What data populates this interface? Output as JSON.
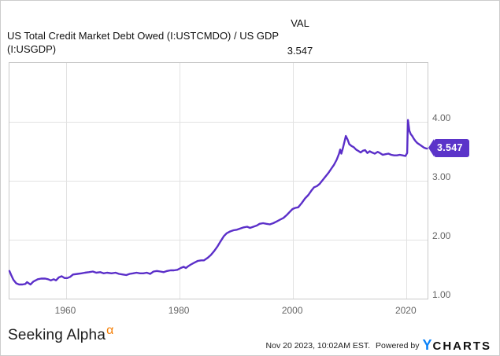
{
  "header": {
    "title_line1": "US Total Credit Market Debt Owed (I:USTCMDO) / US GDP",
    "title_line2": "(I:USGDP)",
    "val_label": "VAL",
    "val_value": "3.547"
  },
  "badge": {
    "value": "3.547",
    "numeric": 3.547
  },
  "footer": {
    "brand": "Seeking Alpha",
    "brand_alpha": "α",
    "timestamp": "Nov 20 2023, 10:02AM EST.",
    "powered_by": "Powered by",
    "ycharts_y": "Y",
    "ycharts_rest": "CHARTS"
  },
  "colors": {
    "line": "#5b2fc9",
    "badge_bg": "#5b34c9",
    "alpha_orange": "#f57c00",
    "ycharts_blue": "#0b82f8",
    "grid": "#e2e2e2",
    "axis_text": "#666666"
  },
  "chart_data": {
    "type": "line",
    "title": "US Total Credit Market Debt Owed (I:USTCMDO) / US GDP (I:USGDP)",
    "xlabel": "",
    "ylabel": "",
    "xlim": [
      1950.0,
      2023.7
    ],
    "ylim": [
      1.0,
      5.0
    ],
    "grid": true,
    "legend_position": "none",
    "x_ticks": [
      {
        "year": 1960,
        "label": "1960"
      },
      {
        "year": 1980,
        "label": "1980"
      },
      {
        "year": 2000,
        "label": "2000"
      },
      {
        "year": 2020,
        "label": "2020"
      }
    ],
    "y_ticks": [
      {
        "value": 4.0,
        "label": "4.00"
      },
      {
        "value": 3.0,
        "label": "3.00"
      },
      {
        "value": 2.0,
        "label": "2.00"
      },
      {
        "value": 1.0,
        "label": "1.00"
      }
    ],
    "last_value": 3.547,
    "series": [
      {
        "name": "US Total Credit Market Debt Owed / US GDP",
        "points": [
          [
            1950.0,
            1.47
          ],
          [
            1950.3,
            1.4
          ],
          [
            1950.7,
            1.32
          ],
          [
            1951.2,
            1.26
          ],
          [
            1951.7,
            1.24
          ],
          [
            1952.3,
            1.24
          ],
          [
            1952.8,
            1.25
          ],
          [
            1953.1,
            1.28
          ],
          [
            1953.7,
            1.24
          ],
          [
            1954.2,
            1.29
          ],
          [
            1955.0,
            1.33
          ],
          [
            1955.6,
            1.34
          ],
          [
            1956.3,
            1.34
          ],
          [
            1956.8,
            1.33
          ],
          [
            1957.3,
            1.31
          ],
          [
            1957.8,
            1.33
          ],
          [
            1958.2,
            1.31
          ],
          [
            1958.7,
            1.36
          ],
          [
            1959.2,
            1.38
          ],
          [
            1959.7,
            1.35
          ],
          [
            1960.2,
            1.35
          ],
          [
            1960.7,
            1.37
          ],
          [
            1961.2,
            1.41
          ],
          [
            1962.0,
            1.42
          ],
          [
            1962.7,
            1.43
          ],
          [
            1963.3,
            1.44
          ],
          [
            1964.0,
            1.45
          ],
          [
            1964.7,
            1.46
          ],
          [
            1965.3,
            1.44
          ],
          [
            1966.0,
            1.45
          ],
          [
            1966.6,
            1.43
          ],
          [
            1967.2,
            1.44
          ],
          [
            1968.0,
            1.43
          ],
          [
            1968.7,
            1.44
          ],
          [
            1969.3,
            1.42
          ],
          [
            1970.0,
            1.41
          ],
          [
            1970.6,
            1.4
          ],
          [
            1971.2,
            1.42
          ],
          [
            1971.8,
            1.43
          ],
          [
            1972.4,
            1.44
          ],
          [
            1973.0,
            1.43
          ],
          [
            1973.6,
            1.43
          ],
          [
            1974.2,
            1.44
          ],
          [
            1974.8,
            1.42
          ],
          [
            1975.4,
            1.46
          ],
          [
            1976.0,
            1.47
          ],
          [
            1976.6,
            1.46
          ],
          [
            1977.2,
            1.45
          ],
          [
            1977.8,
            1.47
          ],
          [
            1978.4,
            1.48
          ],
          [
            1979.0,
            1.48
          ],
          [
            1979.6,
            1.49
          ],
          [
            1980.2,
            1.52
          ],
          [
            1980.7,
            1.54
          ],
          [
            1981.1,
            1.52
          ],
          [
            1981.5,
            1.55
          ],
          [
            1982.0,
            1.58
          ],
          [
            1982.6,
            1.61
          ],
          [
            1983.2,
            1.64
          ],
          [
            1983.8,
            1.65
          ],
          [
            1984.3,
            1.65
          ],
          [
            1984.9,
            1.69
          ],
          [
            1985.5,
            1.74
          ],
          [
            1986.1,
            1.81
          ],
          [
            1986.7,
            1.89
          ],
          [
            1987.2,
            1.97
          ],
          [
            1987.8,
            2.06
          ],
          [
            1988.3,
            2.11
          ],
          [
            1988.9,
            2.14
          ],
          [
            1989.5,
            2.16
          ],
          [
            1990.1,
            2.17
          ],
          [
            1990.7,
            2.19
          ],
          [
            1991.3,
            2.21
          ],
          [
            1991.9,
            2.22
          ],
          [
            1992.4,
            2.2
          ],
          [
            1993.0,
            2.22
          ],
          [
            1993.6,
            2.24
          ],
          [
            1994.1,
            2.27
          ],
          [
            1994.7,
            2.28
          ],
          [
            1995.3,
            2.27
          ],
          [
            1995.9,
            2.26
          ],
          [
            1996.5,
            2.28
          ],
          [
            1997.1,
            2.31
          ],
          [
            1997.7,
            2.34
          ],
          [
            1998.3,
            2.37
          ],
          [
            1998.9,
            2.42
          ],
          [
            1999.4,
            2.47
          ],
          [
            1999.9,
            2.52
          ],
          [
            2000.4,
            2.54
          ],
          [
            2000.9,
            2.55
          ],
          [
            2001.5,
            2.62
          ],
          [
            2002.1,
            2.7
          ],
          [
            2002.7,
            2.76
          ],
          [
            2003.2,
            2.83
          ],
          [
            2003.7,
            2.89
          ],
          [
            2004.2,
            2.91
          ],
          [
            2004.7,
            2.95
          ],
          [
            2005.2,
            3.01
          ],
          [
            2005.7,
            3.07
          ],
          [
            2006.2,
            3.13
          ],
          [
            2006.7,
            3.2
          ],
          [
            2007.2,
            3.27
          ],
          [
            2007.7,
            3.36
          ],
          [
            2008.1,
            3.46
          ],
          [
            2008.3,
            3.53
          ],
          [
            2008.5,
            3.46
          ],
          [
            2008.8,
            3.56
          ],
          [
            2009.1,
            3.68
          ],
          [
            2009.3,
            3.76
          ],
          [
            2009.6,
            3.7
          ],
          [
            2009.9,
            3.62
          ],
          [
            2010.3,
            3.59
          ],
          [
            2010.7,
            3.57
          ],
          [
            2011.1,
            3.53
          ],
          [
            2011.6,
            3.5
          ],
          [
            2011.9,
            3.48
          ],
          [
            2012.3,
            3.51
          ],
          [
            2012.7,
            3.52
          ],
          [
            2013.1,
            3.47
          ],
          [
            2013.5,
            3.5
          ],
          [
            2013.9,
            3.48
          ],
          [
            2014.4,
            3.46
          ],
          [
            2014.9,
            3.49
          ],
          [
            2015.3,
            3.47
          ],
          [
            2015.8,
            3.44
          ],
          [
            2016.3,
            3.45
          ],
          [
            2016.8,
            3.46
          ],
          [
            2017.3,
            3.44
          ],
          [
            2017.8,
            3.43
          ],
          [
            2018.3,
            3.43
          ],
          [
            2018.8,
            3.44
          ],
          [
            2019.3,
            3.43
          ],
          [
            2019.8,
            3.42
          ],
          [
            2020.1,
            3.47
          ],
          [
            2020.25,
            4.03
          ],
          [
            2020.5,
            3.85
          ],
          [
            2020.75,
            3.79
          ],
          [
            2021.0,
            3.76
          ],
          [
            2021.3,
            3.71
          ],
          [
            2021.6,
            3.67
          ],
          [
            2021.9,
            3.64
          ],
          [
            2022.2,
            3.62
          ],
          [
            2022.5,
            3.6
          ],
          [
            2022.8,
            3.58
          ],
          [
            2023.1,
            3.56
          ],
          [
            2023.4,
            3.55
          ],
          [
            2023.6,
            3.547
          ]
        ]
      }
    ]
  }
}
